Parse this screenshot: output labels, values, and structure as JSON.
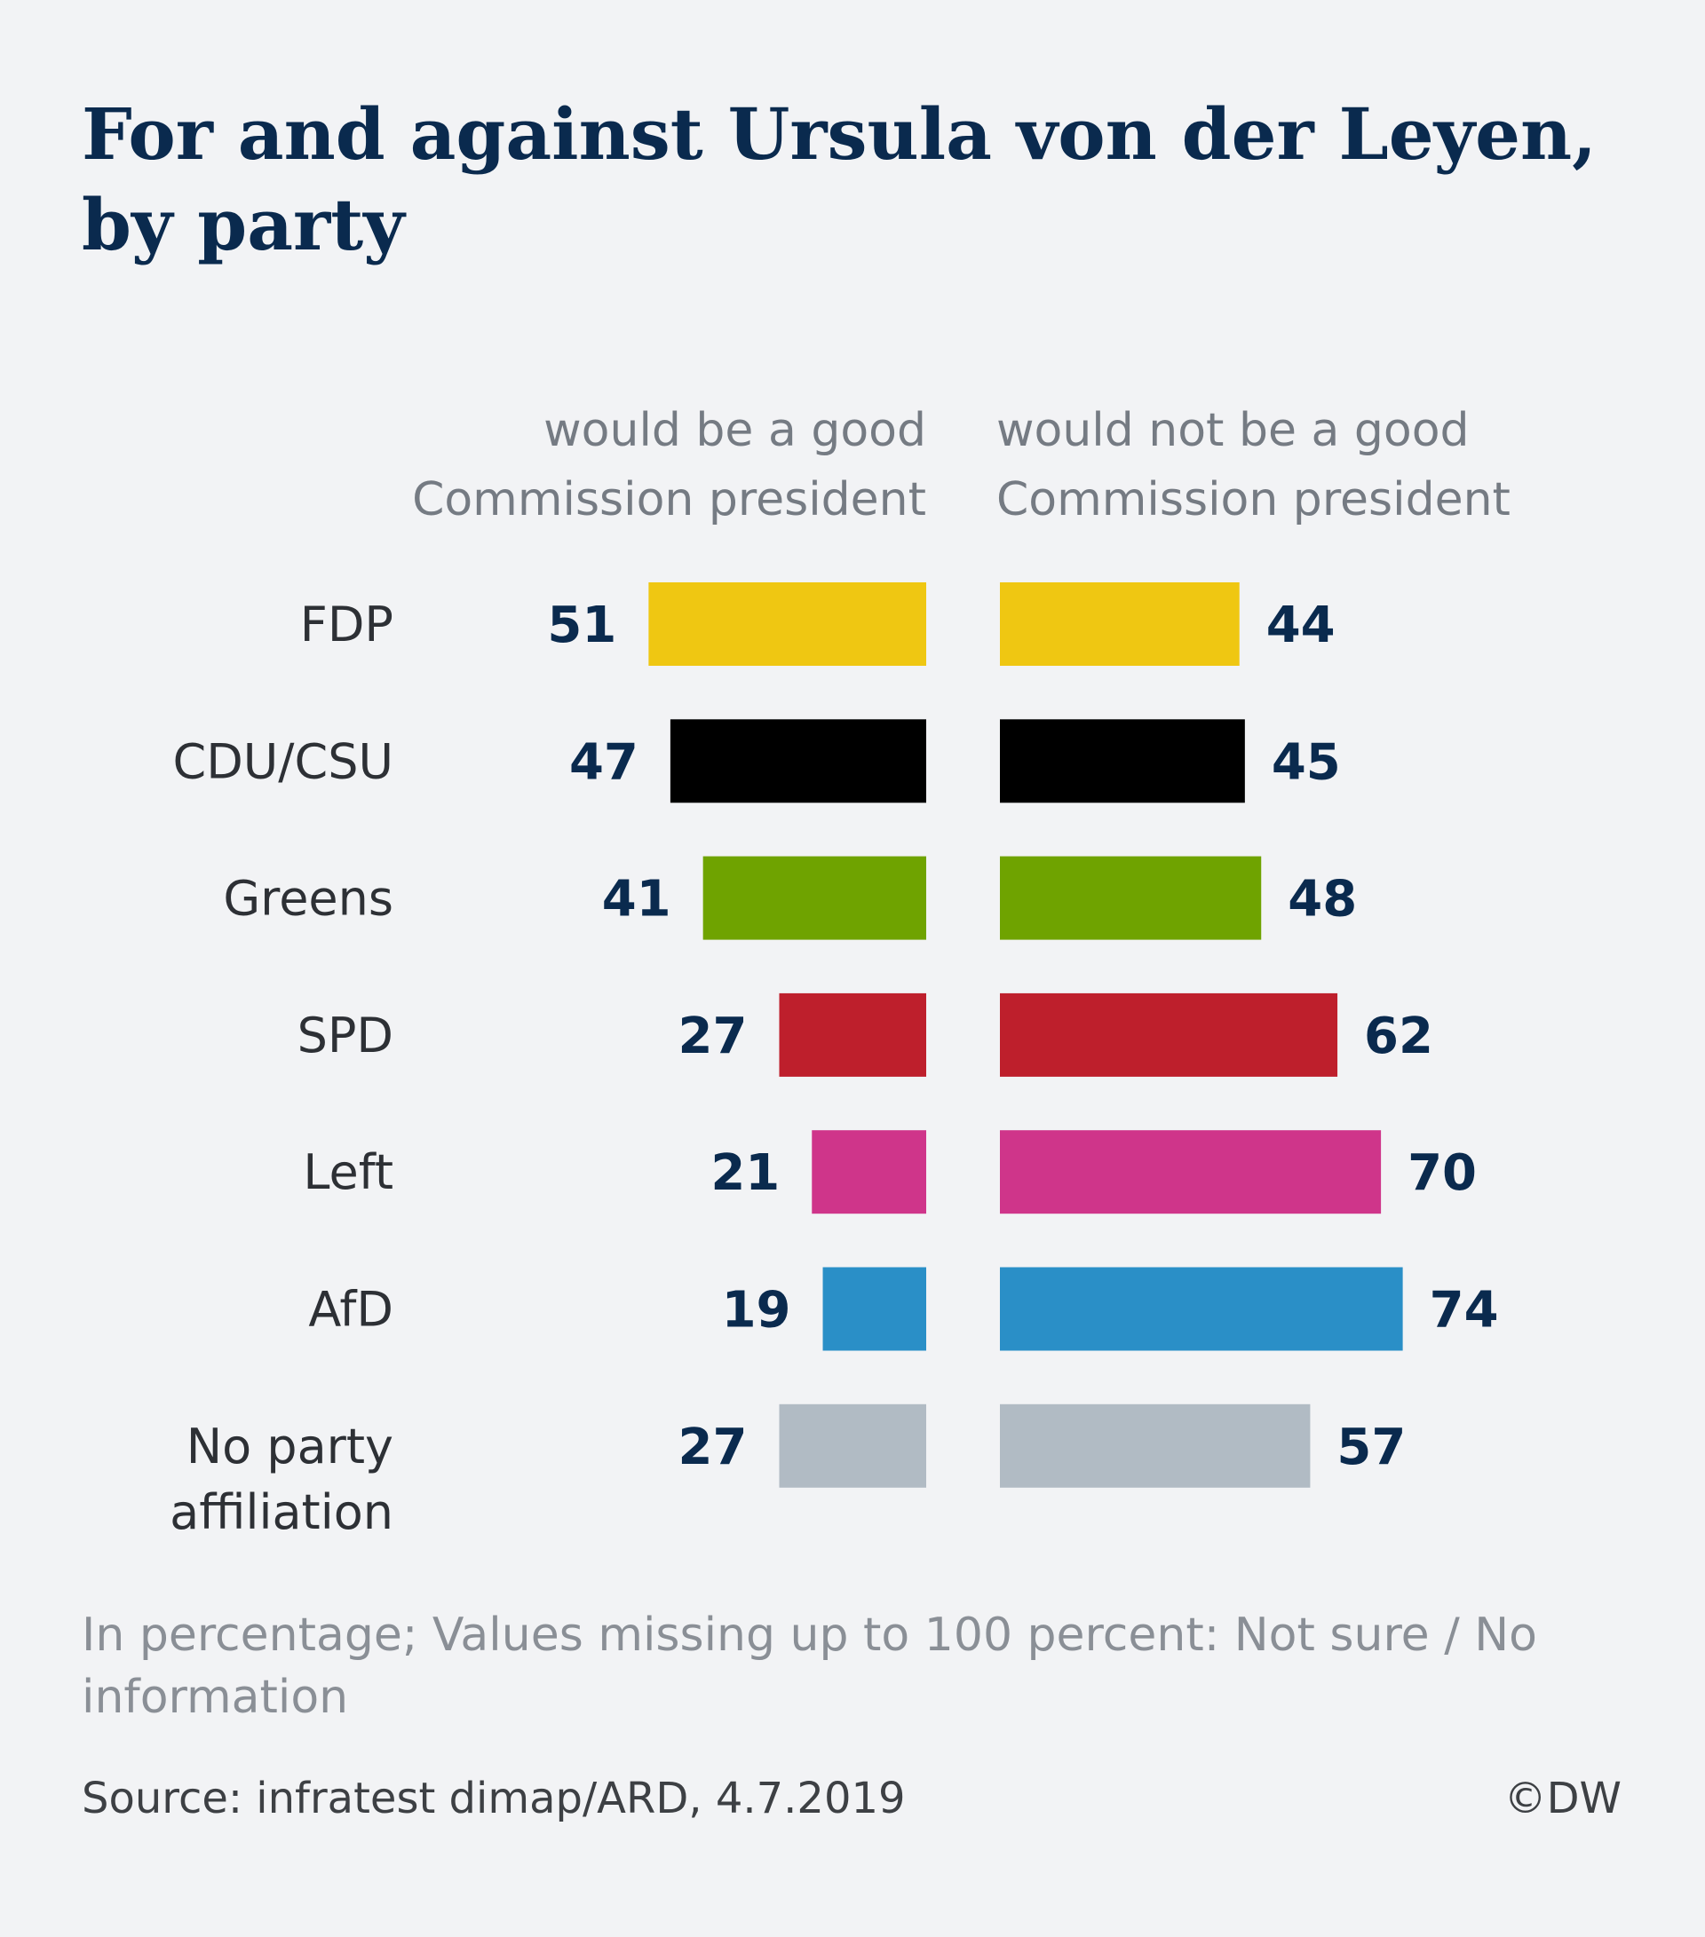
{
  "title": "For and against Ursula von der Leyen, by party",
  "note": "In percentage; Values missing up to 100 percent: Not sure / No information",
  "source": "Source: infratest dimap/ARD, 4.7.2019",
  "copyright": "©DW",
  "chart_data": {
    "type": "bar",
    "orientation": "horizontal-diverging",
    "title": "For and against Ursula von der Leyen, by party",
    "categories": [
      "FDP",
      "CDU/CSU",
      "Greens",
      "SPD",
      "Left",
      "AfD",
      "No party affiliation"
    ],
    "category_colors": [
      "#efc712",
      "#000000",
      "#6fa300",
      "#be1f2c",
      "#cf358a",
      "#2a8fc7",
      "#b1bbc4"
    ],
    "series": [
      {
        "name": "would be a good Commission president",
        "side": "left",
        "values": [
          51,
          47,
          41,
          27,
          21,
          19,
          27
        ]
      },
      {
        "name": "would not be a good Commission president",
        "side": "right",
        "values": [
          44,
          45,
          48,
          62,
          70,
          74,
          57
        ]
      }
    ],
    "unit": "percent",
    "value_labels_color": "#0a2a4e",
    "category_label_color": "#2d3035",
    "grid": false,
    "legend": "column headers above bars"
  }
}
